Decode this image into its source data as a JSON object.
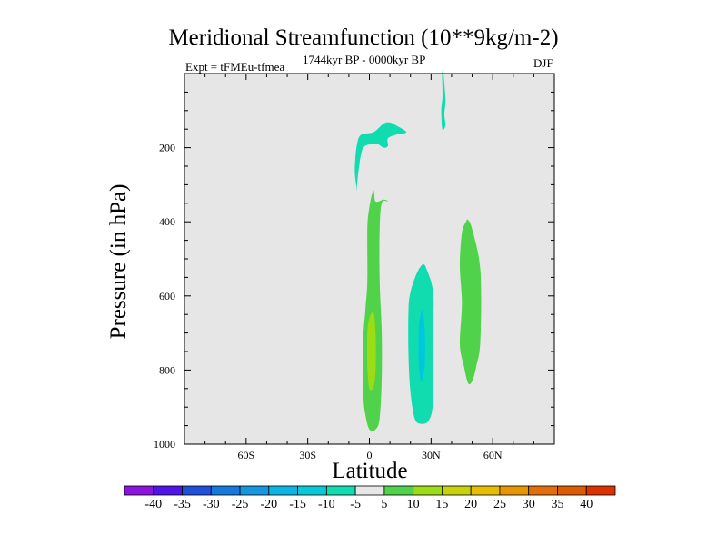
{
  "chart_data": {
    "type": "contour",
    "title": "Meridional Streamfunction (10**9kg/m-2)",
    "subtitle_left": "Expt = tFMEu-tfmea",
    "subtitle_center": "1744kyr BP - 0000kyr BP",
    "subtitle_right": "DJF",
    "xlabel": "Latitude",
    "ylabel": "Pressure (in hPa)",
    "xlim": [
      -90,
      90
    ],
    "ylim": [
      0,
      1000
    ],
    "y_inverted": true,
    "x_ticks": [
      {
        "value": -60,
        "label": "60S"
      },
      {
        "value": -30,
        "label": "30S"
      },
      {
        "value": 0,
        "label": "0"
      },
      {
        "value": 30,
        "label": "30N"
      },
      {
        "value": 60,
        "label": "60N"
      }
    ],
    "y_ticks": [
      {
        "value": 200,
        "label": "200"
      },
      {
        "value": 400,
        "label": "400"
      },
      {
        "value": 600,
        "label": "600"
      },
      {
        "value": 800,
        "label": "800"
      },
      {
        "value": 1000,
        "label": "1000"
      }
    ],
    "background_color": "#e6e6e6",
    "contour_regions": [
      {
        "name": "upper-negative-cell",
        "level": "-10 to -5",
        "color": "#10dcb0",
        "points": [
          [
            -7,
            240
          ],
          [
            -6,
            190
          ],
          [
            -4,
            165
          ],
          [
            2,
            158
          ],
          [
            7,
            135
          ],
          [
            10,
            132
          ],
          [
            13,
            140
          ],
          [
            18,
            158
          ],
          [
            13,
            165
          ],
          [
            9,
            175
          ],
          [
            9,
            195
          ],
          [
            7,
            200
          ],
          [
            4,
            190
          ],
          [
            2,
            190
          ],
          [
            -3,
            200
          ],
          [
            -5,
            250
          ],
          [
            -6,
            300
          ],
          [
            -6,
            315
          ],
          [
            -7,
            275
          ]
        ]
      },
      {
        "name": "thin-negative-plume",
        "level": "-10 to -5",
        "color": "#10dcb0",
        "points": [
          [
            36,
            0
          ],
          [
            37,
            70
          ],
          [
            36.5,
            110
          ],
          [
            37,
            140
          ],
          [
            35.5,
            150
          ],
          [
            35,
            100
          ],
          [
            35.6,
            60
          ],
          [
            35.4,
            0
          ]
        ]
      },
      {
        "name": "equatorial-positive-cell",
        "level": "5 to 10",
        "color": "#50d24a",
        "points": [
          [
            2,
            315
          ],
          [
            3,
            345
          ],
          [
            7,
            340
          ],
          [
            9,
            345
          ],
          [
            6,
            350
          ],
          [
            5,
            420
          ],
          [
            5,
            560
          ],
          [
            6,
            700
          ],
          [
            6,
            820
          ],
          [
            5,
            930
          ],
          [
            3,
            960
          ],
          [
            0,
            960
          ],
          [
            -2,
            920
          ],
          [
            -3,
            860
          ],
          [
            -3,
            720
          ],
          [
            -2,
            640
          ],
          [
            -1,
            560
          ],
          [
            -1,
            420
          ],
          [
            0,
            360
          ]
        ]
      },
      {
        "name": "equatorial-positive-core",
        "level": "10 to 15",
        "color": "#9cdc14",
        "points": [
          [
            2,
            645
          ],
          [
            3,
            700
          ],
          [
            3,
            800
          ],
          [
            2,
            845
          ],
          [
            0,
            850
          ],
          [
            -1,
            790
          ],
          [
            -1,
            700
          ],
          [
            0,
            660
          ]
        ]
      },
      {
        "name": "nh-negative-cell",
        "level": "-10 to -5",
        "color": "#10dcb0",
        "points": [
          [
            28,
            530
          ],
          [
            31,
            590
          ],
          [
            31,
            700
          ],
          [
            31,
            880
          ],
          [
            29,
            935
          ],
          [
            25,
            945
          ],
          [
            22,
            930
          ],
          [
            20,
            860
          ],
          [
            19,
            760
          ],
          [
            19,
            640
          ],
          [
            20,
            590
          ],
          [
            23,
            540
          ],
          [
            26,
            515
          ]
        ]
      },
      {
        "name": "nh-negative-core",
        "level": "-15 to -10",
        "color": "#00c7de",
        "points": [
          [
            26,
            640
          ],
          [
            27,
            700
          ],
          [
            27,
            780
          ],
          [
            26,
            820
          ],
          [
            25,
            830
          ],
          [
            24,
            780
          ],
          [
            24,
            690
          ],
          [
            25,
            650
          ]
        ]
      },
      {
        "name": "nh-positive-cell",
        "level": "5 to 10",
        "color": "#50d24a",
        "points": [
          [
            48,
            395
          ],
          [
            50,
            420
          ],
          [
            54,
            530
          ],
          [
            54,
            720
          ],
          [
            52,
            790
          ],
          [
            50,
            830
          ],
          [
            48,
            835
          ],
          [
            46,
            790
          ],
          [
            44,
            730
          ],
          [
            45,
            620
          ],
          [
            44,
            520
          ],
          [
            45,
            430
          ],
          [
            47,
            400
          ]
        ]
      }
    ],
    "colorbar": {
      "labels": [
        "-40",
        "-35",
        "-30",
        "-25",
        "-20",
        "-15",
        "-10",
        "-5",
        "5",
        "10",
        "15",
        "20",
        "25",
        "30",
        "35",
        "40"
      ],
      "colors": [
        "#8c14dc",
        "#5014e6",
        "#1e50dc",
        "#1478dc",
        "#1496e0",
        "#0ab4e4",
        "#06c8d6",
        "#10dcb0",
        "#e6e6e6",
        "#50d24a",
        "#9cdc14",
        "#c8d20a",
        "#e6be00",
        "#e69600",
        "#e16e0a",
        "#dc5a00",
        "#dc3200"
      ]
    }
  }
}
